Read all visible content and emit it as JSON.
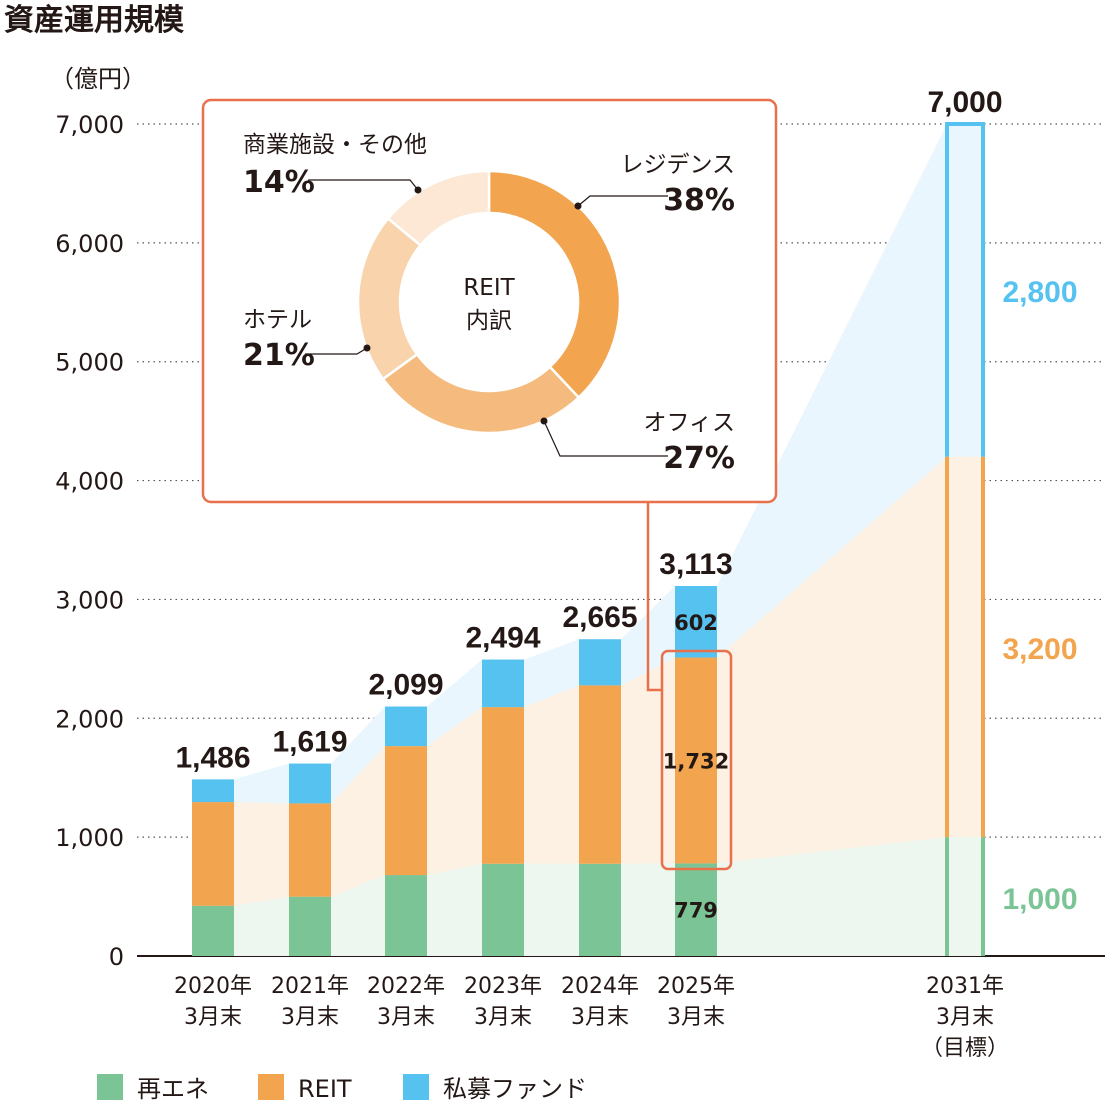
{
  "chart_data": {
    "type": "bar",
    "stacked": true,
    "title": "資産運用規模",
    "ylabel": "（億円）",
    "ylim": [
      0,
      7000
    ],
    "yticks": [
      "0",
      "1,000",
      "2,000",
      "3,000",
      "4,000",
      "5,000",
      "6,000",
      "7,000"
    ],
    "grid": "dotted horizontal",
    "legend_position": "bottom-left",
    "categories": [
      [
        "2020年",
        "3月末"
      ],
      [
        "2021年",
        "3月末"
      ],
      [
        "2022年",
        "3月末"
      ],
      [
        "2023年",
        "3月末"
      ],
      [
        "2024年",
        "3月末"
      ],
      [
        "2025年",
        "3月末"
      ],
      [
        "2031年",
        "3月末",
        "（目標）"
      ]
    ],
    "series": [
      {
        "name": "再エネ",
        "color": "#7bc496",
        "values": [
          423,
          499,
          681,
          776,
          776,
          779,
          1000
        ]
      },
      {
        "name": "REIT",
        "color": "#f2a44e",
        "values": [
          872,
          785,
          1085,
          1318,
          1501,
          1732,
          3200
        ]
      },
      {
        "name": "私募ファンド",
        "color": "#56c2f0",
        "values": [
          191,
          335,
          333,
          400,
          388,
          602,
          2800
        ]
      }
    ],
    "totals": [
      "1,486",
      "1,619",
      "2,099",
      "2,494",
      "2,665",
      "3,113",
      "7,000"
    ],
    "bar_labels_2025": [
      "779",
      "1,732",
      "602"
    ],
    "target_labels_2031": [
      "1,000",
      "3,200",
      "2,800"
    ],
    "inset": {
      "type": "pie",
      "donut": true,
      "center_label": [
        "REIT",
        "内訳"
      ],
      "slices": [
        {
          "label": "レジデンス",
          "value": 38,
          "text": "38%",
          "color": "#f2a44e"
        },
        {
          "label": "オフィス",
          "value": 27,
          "text": "27%",
          "color": "#f5bb7e"
        },
        {
          "label": "ホテル",
          "value": 21,
          "text": "21%",
          "color": "#f8d3ab"
        },
        {
          "label": "商業施設・その他",
          "value": 14,
          "text": "14%",
          "color": "#fce8d5"
        }
      ],
      "highlight_color": "#e8704a"
    }
  }
}
